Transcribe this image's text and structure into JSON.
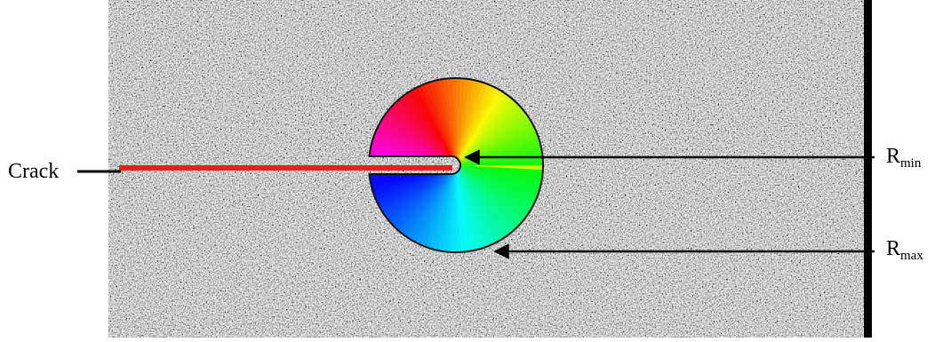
{
  "labels": {
    "crack": "Crack",
    "rmin_main": "R",
    "rmin_sub": "min",
    "rmax_main": "R",
    "rmax_sub": "max"
  },
  "colors": {
    "crack_line": "#ee1c1c",
    "speckle_base": "#5a5a5a",
    "arrow": "#000000",
    "frame": "#000000"
  },
  "legend": {
    "pointer_style": "arrow"
  }
}
